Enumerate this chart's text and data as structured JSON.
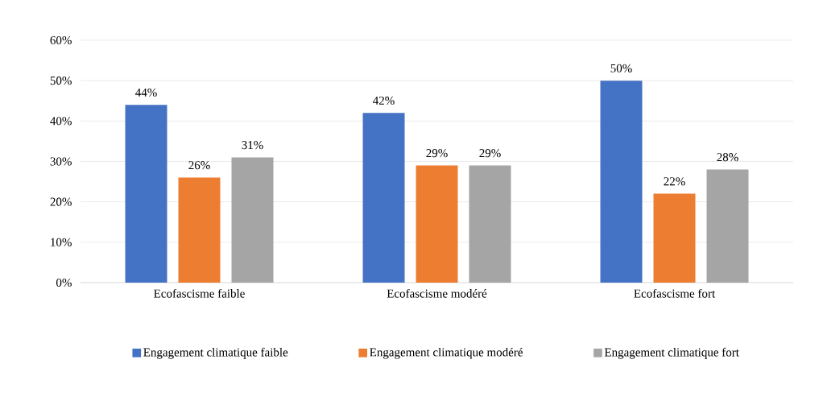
{
  "chart_data": {
    "type": "bar",
    "categories": [
      "Ecofascisme faible",
      "Ecofascisme modéré",
      "Ecofascisme fort"
    ],
    "series": [
      {
        "name": "Engagement climatique faible",
        "color": "#4472c4",
        "values": [
          44,
          42,
          50
        ],
        "value_labels": [
          "44%",
          "42%",
          "50%"
        ]
      },
      {
        "name": "Engagement climatique modéré",
        "color": "#ed7d31",
        "values": [
          26,
          29,
          22
        ],
        "value_labels": [
          "26%",
          "29%",
          "22%"
        ]
      },
      {
        "name": "Engagement climatique fort",
        "color": "#a5a5a5",
        "values": [
          31,
          29,
          28
        ],
        "value_labels": [
          "31%",
          "29%",
          "28%"
        ]
      }
    ],
    "ylim": [
      0,
      60
    ],
    "yticks": [
      {
        "value": 0,
        "label": "0%"
      },
      {
        "value": 10,
        "label": "10%"
      },
      {
        "value": 20,
        "label": "20%"
      },
      {
        "value": 30,
        "label": "30%"
      },
      {
        "value": 40,
        "label": "40%"
      },
      {
        "value": 50,
        "label": "50%"
      },
      {
        "value": 60,
        "label": "60%"
      }
    ],
    "grid": "y",
    "legend": "bottom"
  }
}
